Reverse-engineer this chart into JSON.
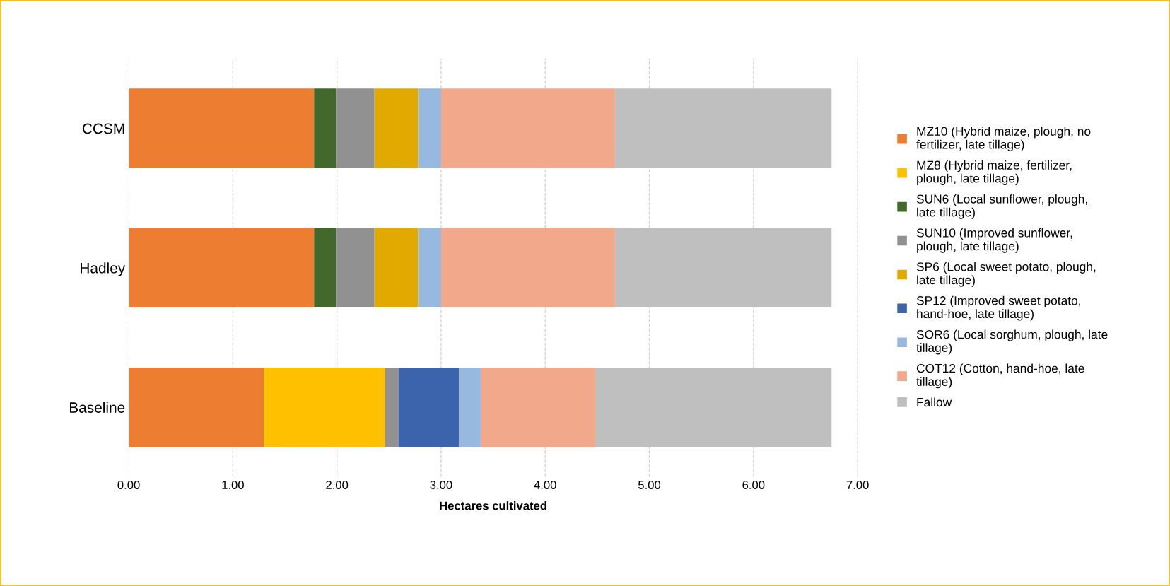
{
  "chart_data": {
    "type": "bar",
    "orientation": "horizontal",
    "stacked": true,
    "xlabel": "Hectares cultivated",
    "categories": [
      "CCSM",
      "Hadley",
      "Baseline"
    ],
    "series": [
      {
        "name": "MZ10 (Hybrid maize, plough, no\nfertilizer, late tillage)",
        "color": "#ed7d31",
        "values": [
          1.78,
          1.78,
          1.3
        ]
      },
      {
        "name": "MZ8 (Hybrid maize, fertilizer,\nplough, late tillage)",
        "color": "#ffc000",
        "values": [
          0,
          0,
          1.16
        ]
      },
      {
        "name": "SUN6 (Local sunflower, plough,\nlate tillage)",
        "color": "#43682b",
        "values": [
          0.21,
          0.21,
          0
        ]
      },
      {
        "name": "SUN10 (Improved sunflower,\nplough, late tillage)",
        "color": "#919191",
        "values": [
          0.37,
          0.37,
          0.13
        ]
      },
      {
        "name": "SP6 (Local sweet potato, plough,\nlate tillage)",
        "color": "#e2aa00",
        "values": [
          0.42,
          0.42,
          0
        ]
      },
      {
        "name": "SP12 (Improved sweet potato,\nhand-hoe, late tillage)",
        "color": "#3c64ac",
        "values": [
          0,
          0,
          0.58
        ]
      },
      {
        "name": "SOR6 (Local sorghum, plough, late\ntillage)",
        "color": "#97b9e0",
        "values": [
          0.22,
          0.22,
          0.21
        ]
      },
      {
        "name": "COT12 (Cotton, hand-hoe, late\ntillage)",
        "color": "#f1a88b",
        "values": [
          1.67,
          1.67,
          1.1
        ]
      },
      {
        "name": "Fallow",
        "color": "#bfbfbf",
        "values": [
          2.08,
          2.08,
          2.27
        ]
      }
    ],
    "xlim": [
      0,
      7
    ],
    "xticks": [
      {
        "value": 0,
        "label": "0.00"
      },
      {
        "value": 1,
        "label": "1.00"
      },
      {
        "value": 2,
        "label": "2.00"
      },
      {
        "value": 3,
        "label": "3.00"
      },
      {
        "value": 4,
        "label": "4.00"
      },
      {
        "value": 5,
        "label": "5.00"
      },
      {
        "value": 6,
        "label": "6.00"
      },
      {
        "value": 7,
        "label": "7.00"
      }
    ],
    "grid": "x",
    "legend": "right"
  }
}
